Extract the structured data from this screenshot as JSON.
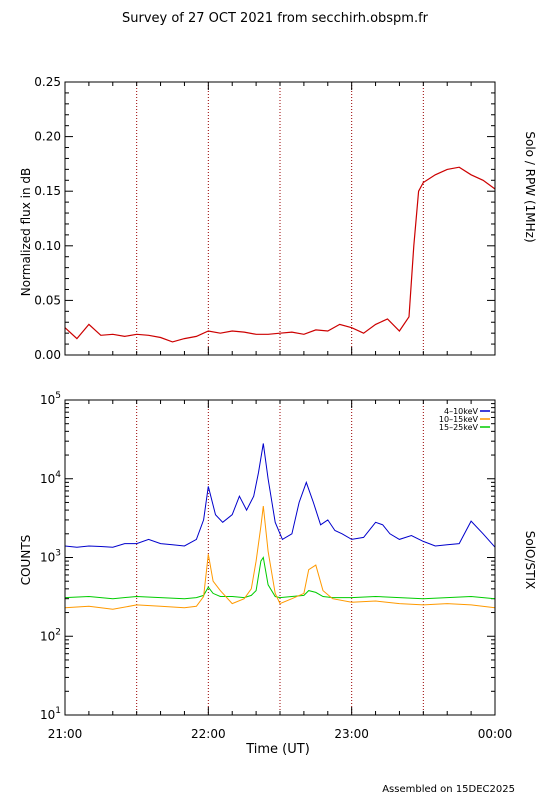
{
  "title": "Survey of 27 OCT 2021 from secchirh.obspm.fr",
  "footer": "Assembled on 15DEC2025",
  "xlabel": "Time (UT)",
  "chart_data": [
    {
      "type": "line",
      "name": "rpw",
      "ylabel": "Normalized flux in dB",
      "right_label": "Solo / RPW (1MHz)",
      "xlim": [
        "21:00",
        "00:00"
      ],
      "ylim": [
        0.0,
        0.25
      ],
      "yscale": "linear",
      "yticks": [
        "0.00",
        "0.05",
        "0.10",
        "0.15",
        "0.20",
        "0.25"
      ],
      "xticks": [],
      "vlines_at": [
        "21:30",
        "22:00",
        "22:30",
        "23:00",
        "23:30"
      ],
      "series": [
        {
          "color": "#cc0000",
          "x": [
            "21:00",
            "21:05",
            "21:10",
            "21:15",
            "21:20",
            "21:25",
            "21:30",
            "21:35",
            "21:40",
            "21:45",
            "21:50",
            "21:55",
            "22:00",
            "22:05",
            "22:10",
            "22:15",
            "22:20",
            "22:25",
            "22:30",
            "22:35",
            "22:40",
            "22:45",
            "22:50",
            "22:55",
            "23:00",
            "23:05",
            "23:10",
            "23:15",
            "23:20",
            "23:24",
            "23:26",
            "23:28",
            "23:30",
            "23:35",
            "23:40",
            "23:45",
            "23:50",
            "23:55",
            "00:00"
          ],
          "values": [
            0.025,
            0.015,
            0.028,
            0.018,
            0.019,
            0.017,
            0.019,
            0.018,
            0.016,
            0.012,
            0.015,
            0.017,
            0.022,
            0.02,
            0.022,
            0.021,
            0.019,
            0.019,
            0.02,
            0.021,
            0.019,
            0.023,
            0.022,
            0.028,
            0.025,
            0.02,
            0.028,
            0.033,
            0.022,
            0.035,
            0.1,
            0.15,
            0.158,
            0.165,
            0.17,
            0.172,
            0.165,
            0.16,
            0.152
          ]
        }
      ]
    },
    {
      "type": "line",
      "name": "stix",
      "ylabel": "COUNTS",
      "right_label": "SolO/STIX",
      "xlim": [
        "21:00",
        "00:00"
      ],
      "ylim": [
        10,
        100000
      ],
      "yscale": "log",
      "yticks": [
        "10",
        "100",
        "1000",
        "10000",
        "100000"
      ],
      "xticks": [
        "21:00",
        "22:00",
        "23:00",
        "00:00"
      ],
      "vlines_at": [
        "21:30",
        "22:00",
        "22:30",
        "23:00",
        "23:30"
      ],
      "legend_position": "top-right",
      "series": [
        {
          "name": "4–10keV",
          "color": "#0000cc",
          "x": [
            "21:00",
            "21:05",
            "21:10",
            "21:15",
            "21:20",
            "21:25",
            "21:30",
            "21:35",
            "21:40",
            "21:45",
            "21:50",
            "21:55",
            "21:58",
            "22:00",
            "22:03",
            "22:06",
            "22:10",
            "22:13",
            "22:16",
            "22:19",
            "22:21",
            "22:23",
            "22:25",
            "22:28",
            "22:31",
            "22:35",
            "22:38",
            "22:41",
            "22:44",
            "22:47",
            "22:50",
            "22:53",
            "22:56",
            "23:00",
            "23:05",
            "23:10",
            "23:13",
            "23:16",
            "23:20",
            "23:25",
            "23:30",
            "23:35",
            "23:40",
            "23:45",
            "23:50",
            "23:55",
            "00:00"
          ],
          "values": [
            1400,
            1350,
            1400,
            1380,
            1350,
            1500,
            1500,
            1700,
            1500,
            1450,
            1400,
            1700,
            3000,
            8000,
            3500,
            2800,
            3500,
            6000,
            4000,
            6000,
            12000,
            28000,
            10000,
            2800,
            1700,
            2000,
            5000,
            9000,
            5000,
            2600,
            3000,
            2200,
            2000,
            1700,
            1800,
            2800,
            2600,
            2000,
            1700,
            1900,
            1600,
            1400,
            1450,
            1500,
            2900,
            2000,
            1350
          ]
        },
        {
          "name": "10–15keV",
          "color": "#ff9900",
          "x": [
            "21:00",
            "21:10",
            "21:20",
            "21:30",
            "21:40",
            "21:50",
            "21:55",
            "21:58",
            "22:00",
            "22:02",
            "22:05",
            "22:10",
            "22:15",
            "22:18",
            "22:20",
            "22:22",
            "22:23",
            "22:25",
            "22:28",
            "22:30",
            "22:35",
            "22:40",
            "22:42",
            "22:45",
            "22:48",
            "22:52",
            "23:00",
            "23:10",
            "23:20",
            "23:30",
            "23:40",
            "23:50",
            "00:00"
          ],
          "values": [
            230,
            240,
            220,
            250,
            240,
            230,
            240,
            320,
            1100,
            500,
            380,
            260,
            300,
            400,
            900,
            2500,
            4500,
            1200,
            350,
            260,
            300,
            350,
            700,
            800,
            380,
            300,
            270,
            280,
            260,
            250,
            260,
            250,
            230
          ]
        },
        {
          "name": "15–25keV",
          "color": "#00cc00",
          "x": [
            "21:00",
            "21:10",
            "21:20",
            "21:30",
            "21:40",
            "21:50",
            "21:55",
            "21:58",
            "22:00",
            "22:02",
            "22:05",
            "22:10",
            "22:15",
            "22:18",
            "22:20",
            "22:22",
            "22:23",
            "22:25",
            "22:28",
            "22:30",
            "22:35",
            "22:40",
            "22:42",
            "22:45",
            "22:48",
            "22:52",
            "23:00",
            "23:10",
            "23:20",
            "23:30",
            "23:40",
            "23:50",
            "00:00"
          ],
          "values": [
            310,
            320,
            300,
            320,
            310,
            300,
            310,
            330,
            420,
            350,
            320,
            320,
            310,
            330,
            380,
            900,
            1000,
            450,
            320,
            310,
            320,
            330,
            380,
            360,
            320,
            310,
            310,
            320,
            310,
            300,
            310,
            320,
            300
          ]
        }
      ]
    }
  ]
}
